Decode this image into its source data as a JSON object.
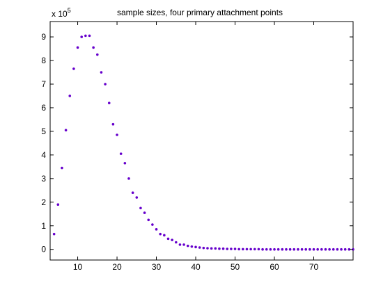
{
  "chart_data": {
    "type": "scatter",
    "title": "sample sizes, four primary attachment points",
    "xlabel": "",
    "ylabel": "",
    "xlim": [
      3,
      80
    ],
    "ylim": [
      -0.45,
      9.65
    ],
    "y_exponent": {
      "prefix": "x 10",
      "power": "5"
    },
    "x_ticks": [
      10,
      20,
      30,
      40,
      50,
      60,
      70
    ],
    "y_ticks": [
      0,
      1,
      2,
      3,
      4,
      5,
      6,
      7,
      8,
      9
    ],
    "x_tick_labels": [
      "10",
      "20",
      "30",
      "40",
      "50",
      "60",
      "70"
    ],
    "y_tick_labels": [
      "0",
      "1",
      "2",
      "3",
      "4",
      "5",
      "6",
      "7",
      "8",
      "9"
    ],
    "grid": false,
    "marker_color": "#6600cc",
    "series": [
      {
        "x": [
          4,
          5,
          6,
          7,
          8,
          9,
          10,
          11,
          12,
          13,
          14,
          15,
          16,
          17,
          18,
          19,
          20,
          21,
          22,
          23,
          24,
          25,
          26,
          27,
          28,
          29,
          30,
          31,
          32,
          33,
          34,
          35,
          36,
          37,
          38,
          39,
          40,
          41,
          42,
          43,
          44,
          45,
          46,
          47,
          48,
          49,
          50,
          51,
          52,
          53,
          54,
          55,
          56,
          57,
          58,
          59,
          60,
          61,
          62,
          63,
          64,
          65,
          66,
          67,
          68,
          69,
          70,
          71,
          72,
          73,
          74,
          75,
          76,
          77,
          78,
          79,
          80
        ],
        "y": [
          0.65,
          1.9,
          3.45,
          5.05,
          6.5,
          7.65,
          8.55,
          9.0,
          9.05,
          9.05,
          8.55,
          8.25,
          7.5,
          7.0,
          6.2,
          5.3,
          4.85,
          4.05,
          3.65,
          3.0,
          2.4,
          2.2,
          1.75,
          1.55,
          1.25,
          1.05,
          0.85,
          0.65,
          0.6,
          0.45,
          0.4,
          0.3,
          0.2,
          0.2,
          0.15,
          0.12,
          0.1,
          0.08,
          0.06,
          0.05,
          0.04,
          0.04,
          0.03,
          0.03,
          0.02,
          0.02,
          0.02,
          0.01,
          0.01,
          0.01,
          0.01,
          0.01,
          0.01,
          0,
          0,
          0,
          0,
          0,
          0,
          0,
          0,
          0,
          0,
          0,
          0,
          0,
          0,
          0,
          0,
          0,
          0,
          0,
          0,
          0,
          0,
          0,
          0
        ]
      }
    ]
  }
}
